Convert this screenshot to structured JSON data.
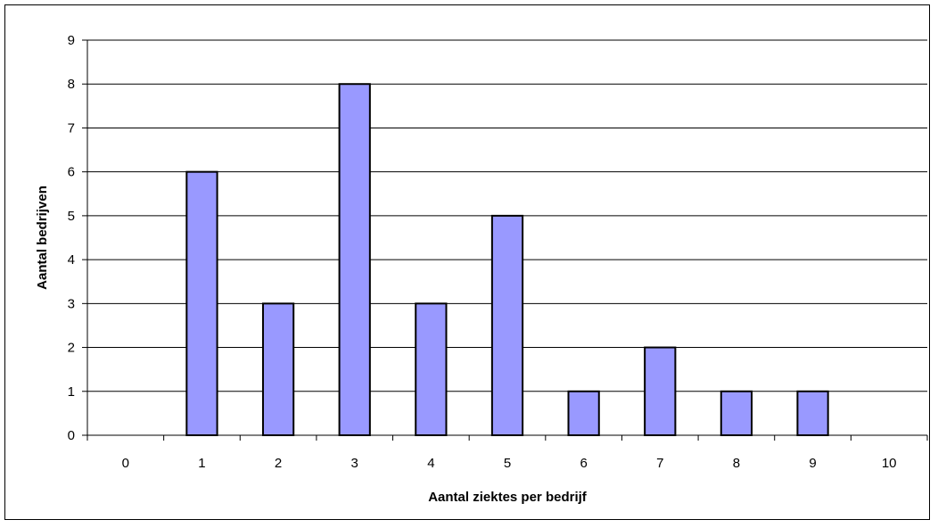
{
  "chart_data": {
    "type": "bar",
    "categories": [
      "0",
      "1",
      "2",
      "3",
      "4",
      "5",
      "6",
      "7",
      "8",
      "9",
      "10"
    ],
    "values": [
      0,
      6,
      3,
      8,
      3,
      5,
      1,
      2,
      1,
      1,
      0
    ],
    "title": "",
    "xlabel": "Aantal ziektes per bedrijf",
    "ylabel": "Aantal bedrijven",
    "ylim": [
      0,
      9
    ],
    "yticks": [
      "0",
      "1",
      "2",
      "3",
      "4",
      "5",
      "6",
      "7",
      "8",
      "9"
    ],
    "grid": true,
    "legend": "none",
    "colors": {
      "bar_fill": "#9999ff",
      "bar_stroke": "#000000",
      "gridline": "#000000",
      "axis": "#000000",
      "background": "#ffffff"
    }
  }
}
